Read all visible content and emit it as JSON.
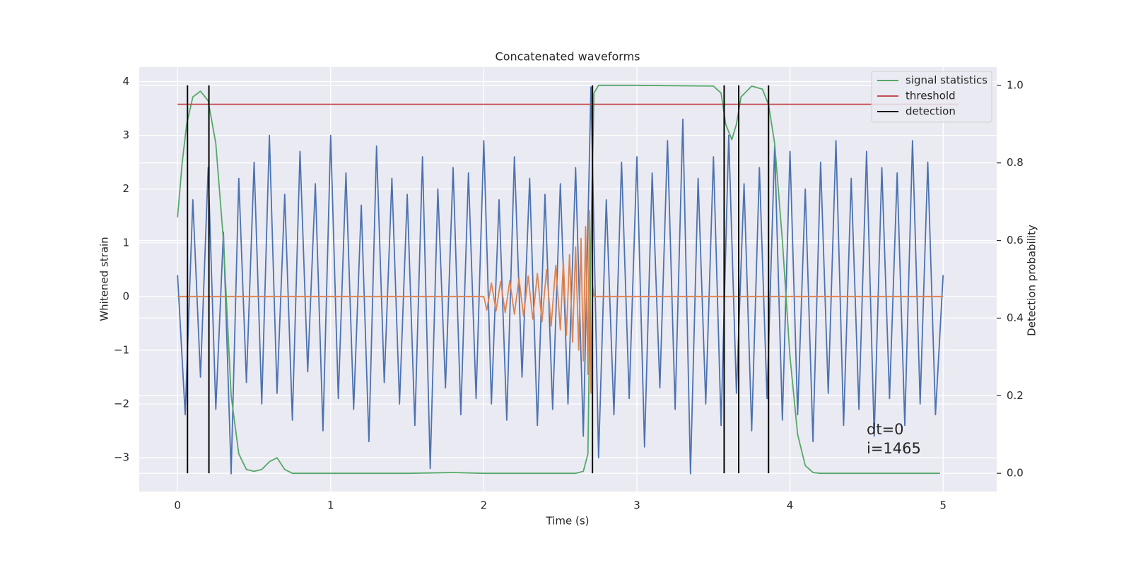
{
  "chart_data": {
    "type": "line",
    "title": "Concatenated waveforms",
    "xlabel": "Time (s)",
    "ylabel": "Whitened strain",
    "y2label": "Detection probability",
    "xlim": [
      -0.25,
      5.35
    ],
    "ylim": [
      -3.63,
      4.27
    ],
    "y2lim": [
      -0.047,
      1.047
    ],
    "xticks": [
      0,
      1,
      2,
      3,
      4,
      5
    ],
    "yticks": [
      {
        "value": -3,
        "label": "−3"
      },
      {
        "value": -2,
        "label": "−2"
      },
      {
        "value": -1,
        "label": "−1"
      },
      0,
      1,
      2,
      3,
      4
    ],
    "y2ticks": [
      {
        "value": 0,
        "label": "0.0"
      },
      0.2,
      0.4,
      0.6,
      0.8,
      {
        "value": 1,
        "label": "1.0"
      }
    ],
    "grid": true,
    "legend": "upper right",
    "annotations": [
      "dt=0",
      "i=1465"
    ],
    "series": [
      {
        "color": "#4c72b0",
        "x": [
          0,
          0.05,
          0.1,
          0.15,
          0.2,
          0.25,
          0.3,
          0.35,
          0.4,
          0.45,
          0.5,
          0.55,
          0.6,
          0.65,
          0.7,
          0.75,
          0.8,
          0.85,
          0.9,
          0.95,
          1,
          1.05,
          1.1,
          1.15,
          1.2,
          1.25,
          1.3,
          1.35,
          1.4,
          1.45,
          1.5,
          1.55,
          1.6,
          1.65,
          1.7,
          1.75,
          1.8,
          1.85,
          1.9,
          1.95,
          2,
          2.05,
          2.1,
          2.15,
          2.2,
          2.25,
          2.3,
          2.35,
          2.4,
          2.45,
          2.5,
          2.55,
          2.6,
          2.65,
          2.7,
          2.75,
          2.8,
          2.85,
          2.9,
          2.95,
          3,
          3.05,
          3.1,
          3.15,
          3.2,
          3.25,
          3.3,
          3.35,
          3.4,
          3.45,
          3.5,
          3.55,
          3.6,
          3.65,
          3.7,
          3.75,
          3.8,
          3.85,
          3.9,
          3.95,
          4,
          4.05,
          4.1,
          4.15,
          4.2,
          4.25,
          4.3,
          4.35,
          4.4,
          4.45,
          4.5,
          4.55,
          4.6,
          4.65,
          4.7,
          4.75,
          4.8,
          4.85,
          4.9,
          4.95,
          5
        ],
        "values": [
          0.4,
          -2.2,
          1.8,
          -1.5,
          2.4,
          -2.1,
          1.2,
          -3.3,
          2.2,
          -1.6,
          2.5,
          -2.0,
          3.0,
          -1.8,
          1.9,
          -2.3,
          2.7,
          -1.4,
          2.1,
          -2.5,
          3.0,
          -1.9,
          2.3,
          -2.1,
          1.7,
          -2.7,
          2.8,
          -1.6,
          2.2,
          -2.0,
          1.9,
          -2.4,
          2.6,
          -3.2,
          2.0,
          -1.7,
          2.4,
          -2.2,
          2.3,
          -1.9,
          2.9,
          -2.0,
          1.8,
          -2.3,
          2.6,
          -1.5,
          2.2,
          -2.4,
          1.9,
          -2.1,
          2.1,
          -2.0,
          2.4,
          -2.6,
          3.9,
          -3.0,
          1.8,
          -2.2,
          2.5,
          -1.9,
          2.6,
          -2.8,
          2.3,
          -1.7,
          2.9,
          -2.1,
          3.3,
          -3.3,
          2.2,
          -2.0,
          2.6,
          -2.4,
          3.0,
          -1.8,
          2.1,
          -2.5,
          2.4,
          -1.9,
          2.8,
          -2.3,
          2.7,
          -2.2,
          2.0,
          -2.7,
          2.5,
          -1.8,
          2.9,
          -2.4,
          2.2,
          -2.1,
          2.7,
          -2.6,
          2.4,
          -1.9,
          2.3,
          -2.4,
          2.9,
          -2.0,
          2.5,
          -2.2,
          0.4
        ]
      },
      {
        "color": "#dd8452",
        "x": [
          0,
          2.0,
          2.02,
          2.05,
          2.08,
          2.11,
          2.14,
          2.17,
          2.2,
          2.23,
          2.26,
          2.29,
          2.32,
          2.35,
          2.38,
          2.41,
          2.44,
          2.47,
          2.5,
          2.52,
          2.54,
          2.56,
          2.58,
          2.6,
          2.62,
          2.635,
          2.65,
          2.665,
          2.68,
          2.69,
          2.7,
          2.71,
          2.72,
          5.0
        ],
        "values": [
          0,
          0,
          -0.25,
          0.25,
          -0.27,
          0.28,
          -0.3,
          0.3,
          -0.33,
          0.34,
          -0.37,
          0.38,
          -0.42,
          0.43,
          -0.47,
          0.5,
          -0.55,
          0.58,
          -0.62,
          0.67,
          -0.72,
          0.78,
          -0.85,
          0.92,
          -1.0,
          1.08,
          -1.2,
          1.3,
          -1.45,
          1.6,
          -1.8,
          0.2,
          0,
          0
        ]
      },
      {
        "name": "signal statistics",
        "color": "#55a868",
        "axis": "y2",
        "x": [
          0,
          0.03,
          0.06,
          0.1,
          0.15,
          0.2,
          0.25,
          0.3,
          0.35,
          0.4,
          0.45,
          0.5,
          0.55,
          0.6,
          0.65,
          0.7,
          0.75,
          1.5,
          1.8,
          2.0,
          2.6,
          2.65,
          2.68,
          2.7,
          2.72,
          2.75,
          3.0,
          3.5,
          3.55,
          3.58,
          3.62,
          3.65,
          3.68,
          3.75,
          3.82,
          3.86,
          3.9,
          3.95,
          4.0,
          4.05,
          4.1,
          4.15,
          4.2,
          4.98
        ],
        "values": [
          0.66,
          0.8,
          0.9,
          0.97,
          0.985,
          0.96,
          0.85,
          0.6,
          0.2,
          0.05,
          0.01,
          0.005,
          0.01,
          0.03,
          0.04,
          0.01,
          0,
          0,
          0.002,
          0,
          0,
          0.005,
          0.05,
          0.6,
          0.98,
          1.0,
          1.0,
          0.998,
          0.98,
          0.9,
          0.86,
          0.9,
          0.97,
          0.998,
          0.99,
          0.95,
          0.85,
          0.6,
          0.3,
          0.1,
          0.02,
          0.002,
          0,
          0
        ]
      },
      {
        "name": "threshold",
        "color": "#c44e52",
        "axis": "y2",
        "x": [
          0,
          5.1
        ],
        "values": [
          0.951,
          0.951
        ]
      }
    ],
    "detections": {
      "name": "detection",
      "color": "#000000",
      "axis": "y2",
      "x": [
        0.065,
        0.205,
        2.71,
        3.57,
        3.665,
        3.86
      ],
      "ymin": 0,
      "ymax": 1
    }
  }
}
